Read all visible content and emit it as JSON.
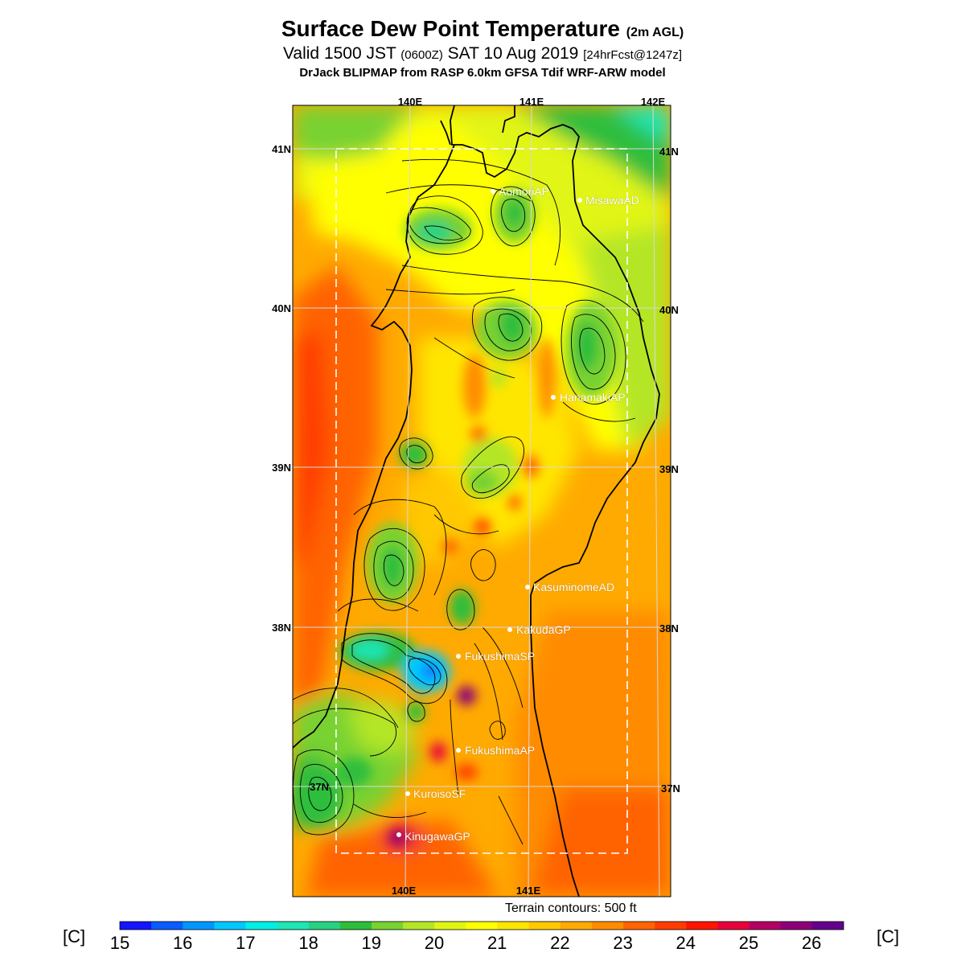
{
  "header": {
    "title": "Surface Dew Point Temperature",
    "title_qualifier": "(2m AGL)",
    "valid_prefix": "Valid 1500 JST",
    "valid_utc": "(0600Z)",
    "valid_date": "SAT 10 Aug 2019",
    "forecast_info": "[24hrFcst@1247z]",
    "model_line": "DrJack BLIPMAP from RASP 6.0km GFSA Tdif WRF-ARW model"
  },
  "map": {
    "lon_labels_top": [
      "140E",
      "141E",
      "142E"
    ],
    "lon_labels_bottom": [
      "140E",
      "141E"
    ],
    "lat_labels_left": [
      "41N",
      "40N",
      "39N",
      "38N",
      "37N"
    ],
    "lat_labels_right": [
      "41N",
      "40N",
      "39N",
      "38N",
      "37N"
    ],
    "stations": [
      {
        "name": "AomoriAP"
      },
      {
        "name": "MisawaAD"
      },
      {
        "name": "HanamakiAP"
      },
      {
        "name": "KasuminomeAD"
      },
      {
        "name": "KakudaGP"
      },
      {
        "name": "FukushimaSP"
      },
      {
        "name": "FukushimaAP"
      },
      {
        "name": "KuroisoSF"
      },
      {
        "name": "KinugawaGP"
      }
    ],
    "terrain_note": "Terrain contours: 500 ft"
  },
  "colorbar": {
    "unit": "[C]",
    "ticks": [
      "15",
      "16",
      "17",
      "18",
      "19",
      "20",
      "21",
      "22",
      "23",
      "24",
      "25",
      "26"
    ],
    "colors": [
      "#1414ff",
      "#0a5cff",
      "#0096ff",
      "#00c8ff",
      "#00f0e6",
      "#1ee6b4",
      "#28d282",
      "#2dbe3c",
      "#78d232",
      "#b4e628",
      "#e1f514",
      "#ffff00",
      "#ffe600",
      "#ffc800",
      "#ffaa00",
      "#ff8c00",
      "#ff6400",
      "#ff3c00",
      "#ff1400",
      "#e6003c",
      "#b40064",
      "#8c0078",
      "#64008c"
    ]
  }
}
